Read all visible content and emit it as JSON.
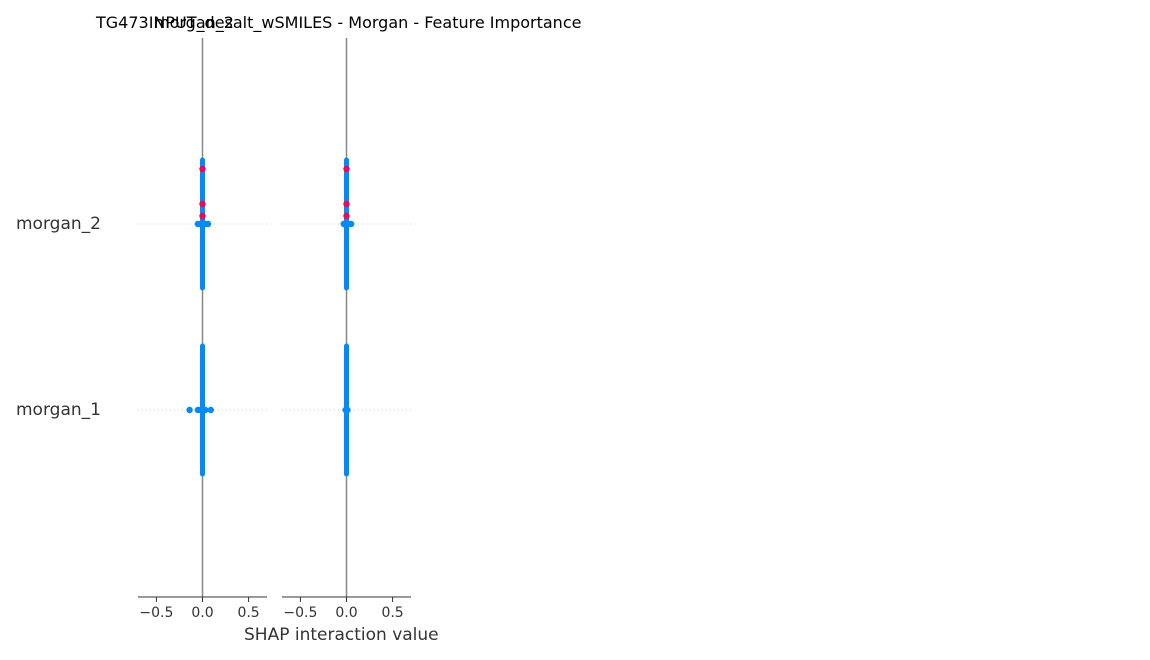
{
  "chart_data": {
    "type": "scatter",
    "title": "TG473INPUT_desalt_wSMILES - Morgan - Feature Importance",
    "panel_titles": [
      "morgan_1",
      "morgan_2"
    ],
    "features": [
      "morgan_2",
      "morgan_1"
    ],
    "xlabel": "SHAP interaction value",
    "xlim": [
      -0.7,
      0.7
    ],
    "xticks": [
      -0.5,
      0.0,
      0.5
    ],
    "xtick_labels": [
      "−0.5",
      "0.0",
      "0.5"
    ],
    "colors": {
      "low": "#008bfb",
      "high": "#ff0052",
      "axis": "#333333",
      "zero_line": "#888888"
    },
    "panels": [
      {
        "name": "morgan_1",
        "rows": [
          {
            "feature": "morgan_2",
            "points": [
              {
                "x": -0.05,
                "c": "low"
              },
              {
                "x": -0.02,
                "c": "low"
              },
              {
                "x": 0.0,
                "c": "low"
              },
              {
                "x": 0.03,
                "c": "low"
              },
              {
                "x": 0.06,
                "c": "low"
              },
              {
                "x": 0.0,
                "c": "high"
              },
              {
                "x": 0.0,
                "c": "high"
              },
              {
                "x": 0.0,
                "c": "high"
              }
            ]
          },
          {
            "feature": "morgan_1",
            "points": [
              {
                "x": -0.14,
                "c": "low"
              },
              {
                "x": -0.05,
                "c": "low"
              },
              {
                "x": -0.02,
                "c": "low"
              },
              {
                "x": 0.0,
                "c": "low"
              },
              {
                "x": 0.03,
                "c": "low"
              },
              {
                "x": 0.09,
                "c": "low"
              }
            ]
          }
        ]
      },
      {
        "name": "morgan_2",
        "rows": [
          {
            "feature": "morgan_2",
            "points": [
              {
                "x": -0.03,
                "c": "low"
              },
              {
                "x": 0.0,
                "c": "low"
              },
              {
                "x": 0.02,
                "c": "low"
              },
              {
                "x": 0.05,
                "c": "low"
              },
              {
                "x": 0.0,
                "c": "high"
              },
              {
                "x": 0.0,
                "c": "high"
              },
              {
                "x": 0.0,
                "c": "high"
              }
            ]
          },
          {
            "feature": "morgan_1",
            "points": [
              {
                "x": -0.01,
                "c": "low"
              },
              {
                "x": 0.0,
                "c": "low"
              },
              {
                "x": 0.01,
                "c": "low"
              }
            ]
          }
        ]
      }
    ]
  }
}
